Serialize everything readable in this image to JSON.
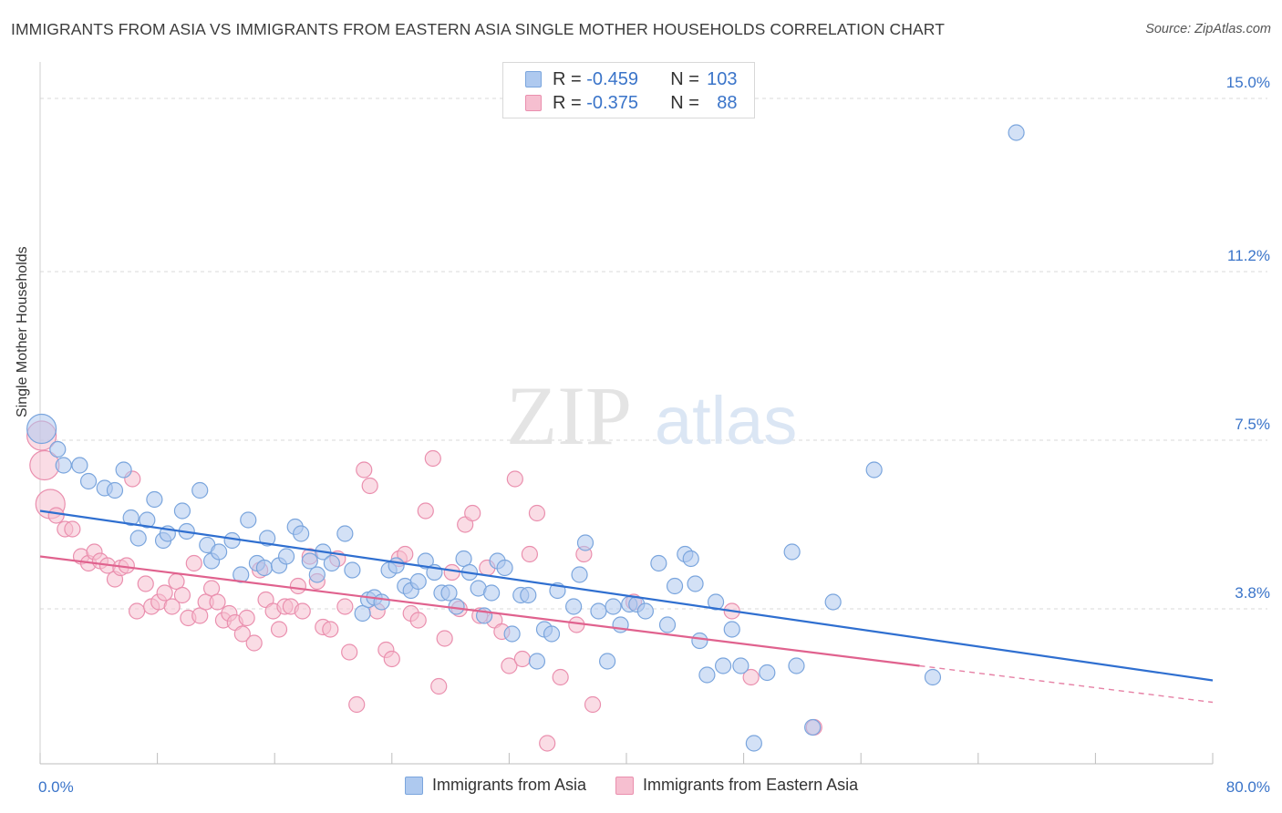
{
  "title": "IMMIGRANTS FROM ASIA VS IMMIGRANTS FROM EASTERN ASIA SINGLE MOTHER HOUSEHOLDS CORRELATION CHART",
  "source": "Source: ZipAtlas.com",
  "watermark": {
    "zip": "ZIP",
    "atlas": "atlas"
  },
  "legend": {
    "rows": [
      {
        "r_label": "R = ",
        "r_value": "-0.459",
        "n_label": "N = ",
        "n_value": "103"
      },
      {
        "r_label": "R = ",
        "r_value": "-0.375",
        "n_label": "N = ",
        "n_value": "88"
      }
    ]
  },
  "colors": {
    "asia_fill": "#aec9ef",
    "asia_stroke": "#7aa5dd",
    "asia_line": "#2f6fd0",
    "east_fill": "#f6bfd0",
    "east_stroke": "#ea8fae",
    "east_line": "#e0628e",
    "tick_label": "#3a74c9",
    "grid": "#d9d9d9"
  },
  "chart_data": {
    "type": "scatter",
    "title": "IMMIGRANTS FROM ASIA VS IMMIGRANTS FROM EASTERN ASIA SINGLE MOTHER HOUSEHOLDS CORRELATION CHART",
    "xlabel": "",
    "ylabel": "Single Mother Households",
    "xlim": [
      0,
      80
    ],
    "ylim": [
      0.4,
      15.6
    ],
    "x_tick_labels": [
      "0.0%",
      "80.0%"
    ],
    "y_ticks": [
      3.8,
      7.5,
      11.2,
      15.0
    ],
    "y_tick_labels": [
      "3.8%",
      "7.5%",
      "11.2%",
      "15.0%"
    ],
    "grid": true,
    "legend_position": "top-center",
    "series": [
      {
        "name": "Immigrants from Asia",
        "trend": {
          "x": [
            0,
            80
          ],
          "y": [
            5.95,
            2.23
          ]
        },
        "points": [
          [
            0.1,
            7.75
          ],
          [
            1.2,
            7.3
          ],
          [
            1.6,
            6.95
          ],
          [
            2.7,
            6.95
          ],
          [
            3.3,
            6.6
          ],
          [
            4.4,
            6.45
          ],
          [
            5.1,
            6.4
          ],
          [
            5.7,
            6.85
          ],
          [
            6.2,
            5.8
          ],
          [
            6.7,
            5.35
          ],
          [
            7.3,
            5.75
          ],
          [
            7.8,
            6.2
          ],
          [
            8.4,
            5.3
          ],
          [
            8.7,
            5.45
          ],
          [
            9.7,
            5.95
          ],
          [
            10.0,
            5.5
          ],
          [
            10.9,
            6.4
          ],
          [
            11.4,
            5.2
          ],
          [
            11.7,
            4.85
          ],
          [
            12.2,
            5.05
          ],
          [
            13.1,
            5.3
          ],
          [
            13.7,
            4.55
          ],
          [
            14.2,
            5.75
          ],
          [
            14.8,
            4.8
          ],
          [
            15.3,
            4.7
          ],
          [
            15.5,
            5.35
          ],
          [
            16.3,
            4.75
          ],
          [
            16.8,
            4.95
          ],
          [
            17.4,
            5.6
          ],
          [
            17.8,
            5.45
          ],
          [
            18.4,
            4.85
          ],
          [
            18.9,
            4.55
          ],
          [
            19.3,
            5.05
          ],
          [
            19.9,
            4.8
          ],
          [
            20.8,
            5.45
          ],
          [
            21.3,
            4.65
          ],
          [
            22.0,
            3.7
          ],
          [
            22.4,
            4.0
          ],
          [
            22.8,
            4.05
          ],
          [
            23.3,
            3.95
          ],
          [
            23.8,
            4.65
          ],
          [
            24.3,
            4.75
          ],
          [
            24.9,
            4.3
          ],
          [
            25.3,
            4.2
          ],
          [
            25.8,
            4.4
          ],
          [
            26.3,
            4.85
          ],
          [
            26.9,
            4.6
          ],
          [
            27.4,
            4.15
          ],
          [
            27.9,
            4.15
          ],
          [
            28.4,
            3.85
          ],
          [
            28.9,
            4.9
          ],
          [
            29.3,
            4.6
          ],
          [
            29.9,
            4.25
          ],
          [
            30.3,
            3.65
          ],
          [
            30.8,
            4.15
          ],
          [
            31.2,
            4.85
          ],
          [
            31.7,
            4.7
          ],
          [
            32.2,
            3.25
          ],
          [
            32.8,
            4.1
          ],
          [
            33.3,
            4.1
          ],
          [
            33.9,
            2.65
          ],
          [
            34.4,
            3.35
          ],
          [
            34.9,
            3.25
          ],
          [
            35.3,
            4.2
          ],
          [
            36.4,
            3.85
          ],
          [
            36.8,
            4.55
          ],
          [
            37.2,
            5.25
          ],
          [
            38.1,
            3.75
          ],
          [
            38.7,
            2.65
          ],
          [
            39.1,
            3.85
          ],
          [
            39.6,
            3.45
          ],
          [
            40.2,
            3.9
          ],
          [
            40.7,
            3.9
          ],
          [
            41.3,
            3.75
          ],
          [
            42.2,
            4.8
          ],
          [
            42.8,
            3.45
          ],
          [
            43.3,
            4.3
          ],
          [
            44.0,
            5.0
          ],
          [
            44.4,
            4.9
          ],
          [
            44.7,
            4.35
          ],
          [
            45.0,
            3.1
          ],
          [
            45.5,
            2.35
          ],
          [
            46.1,
            3.95
          ],
          [
            46.6,
            2.55
          ],
          [
            47.2,
            3.35
          ],
          [
            47.8,
            2.55
          ],
          [
            48.7,
            0.85
          ],
          [
            49.6,
            2.4
          ],
          [
            51.3,
            5.05
          ],
          [
            51.6,
            2.55
          ],
          [
            52.7,
            1.2
          ],
          [
            54.1,
            3.95
          ],
          [
            56.9,
            6.85
          ],
          [
            60.9,
            2.3
          ],
          [
            66.6,
            14.25
          ]
        ]
      },
      {
        "name": "Immigrants from Eastern Asia",
        "trend": {
          "x": [
            0,
            60
          ],
          "y": [
            4.95,
            2.55
          ]
        },
        "trend_dashed": {
          "x": [
            60,
            80
          ],
          "y": [
            2.55,
            1.75
          ]
        },
        "points": [
          [
            0.1,
            7.6
          ],
          [
            0.3,
            6.95
          ],
          [
            0.7,
            6.1
          ],
          [
            1.1,
            5.85
          ],
          [
            1.7,
            5.55
          ],
          [
            2.2,
            5.55
          ],
          [
            2.8,
            4.95
          ],
          [
            3.3,
            4.8
          ],
          [
            3.7,
            5.05
          ],
          [
            4.1,
            4.85
          ],
          [
            4.6,
            4.75
          ],
          [
            5.1,
            4.45
          ],
          [
            5.5,
            4.7
          ],
          [
            5.9,
            4.75
          ],
          [
            6.3,
            6.65
          ],
          [
            6.6,
            3.75
          ],
          [
            7.2,
            4.35
          ],
          [
            7.6,
            3.85
          ],
          [
            8.1,
            3.95
          ],
          [
            8.5,
            4.15
          ],
          [
            9.0,
            3.85
          ],
          [
            9.3,
            4.4
          ],
          [
            9.7,
            4.1
          ],
          [
            10.1,
            3.6
          ],
          [
            10.5,
            4.8
          ],
          [
            10.9,
            3.65
          ],
          [
            11.3,
            3.95
          ],
          [
            11.7,
            4.25
          ],
          [
            12.1,
            3.95
          ],
          [
            12.5,
            3.55
          ],
          [
            12.9,
            3.7
          ],
          [
            13.3,
            3.5
          ],
          [
            13.8,
            3.25
          ],
          [
            14.1,
            3.6
          ],
          [
            14.6,
            3.05
          ],
          [
            15.0,
            4.65
          ],
          [
            15.4,
            4.0
          ],
          [
            15.9,
            3.75
          ],
          [
            16.3,
            3.35
          ],
          [
            16.7,
            3.85
          ],
          [
            17.1,
            3.85
          ],
          [
            17.6,
            4.3
          ],
          [
            17.9,
            3.75
          ],
          [
            18.4,
            4.95
          ],
          [
            18.9,
            4.4
          ],
          [
            19.3,
            3.4
          ],
          [
            19.8,
            3.35
          ],
          [
            20.3,
            4.9
          ],
          [
            20.8,
            3.85
          ],
          [
            21.1,
            2.85
          ],
          [
            21.6,
            1.7
          ],
          [
            22.1,
            6.85
          ],
          [
            22.5,
            6.5
          ],
          [
            23.0,
            3.75
          ],
          [
            23.6,
            2.9
          ],
          [
            24.0,
            2.7
          ],
          [
            24.5,
            4.9
          ],
          [
            24.9,
            5.0
          ],
          [
            25.3,
            3.7
          ],
          [
            25.8,
            3.55
          ],
          [
            26.3,
            5.95
          ],
          [
            26.8,
            7.1
          ],
          [
            27.2,
            2.1
          ],
          [
            27.6,
            3.15
          ],
          [
            28.1,
            4.6
          ],
          [
            28.6,
            3.8
          ],
          [
            29.0,
            5.65
          ],
          [
            29.5,
            5.9
          ],
          [
            30.0,
            3.65
          ],
          [
            30.5,
            4.7
          ],
          [
            31.0,
            3.55
          ],
          [
            31.5,
            3.3
          ],
          [
            32.0,
            2.55
          ],
          [
            32.4,
            6.65
          ],
          [
            32.9,
            2.7
          ],
          [
            33.4,
            5.0
          ],
          [
            33.9,
            5.9
          ],
          [
            34.6,
            0.85
          ],
          [
            35.5,
            2.3
          ],
          [
            36.6,
            3.45
          ],
          [
            37.1,
            5.0
          ],
          [
            37.7,
            1.7
          ],
          [
            40.5,
            3.95
          ],
          [
            47.2,
            3.75
          ],
          [
            48.5,
            2.3
          ],
          [
            52.8,
            1.2
          ]
        ]
      }
    ]
  }
}
